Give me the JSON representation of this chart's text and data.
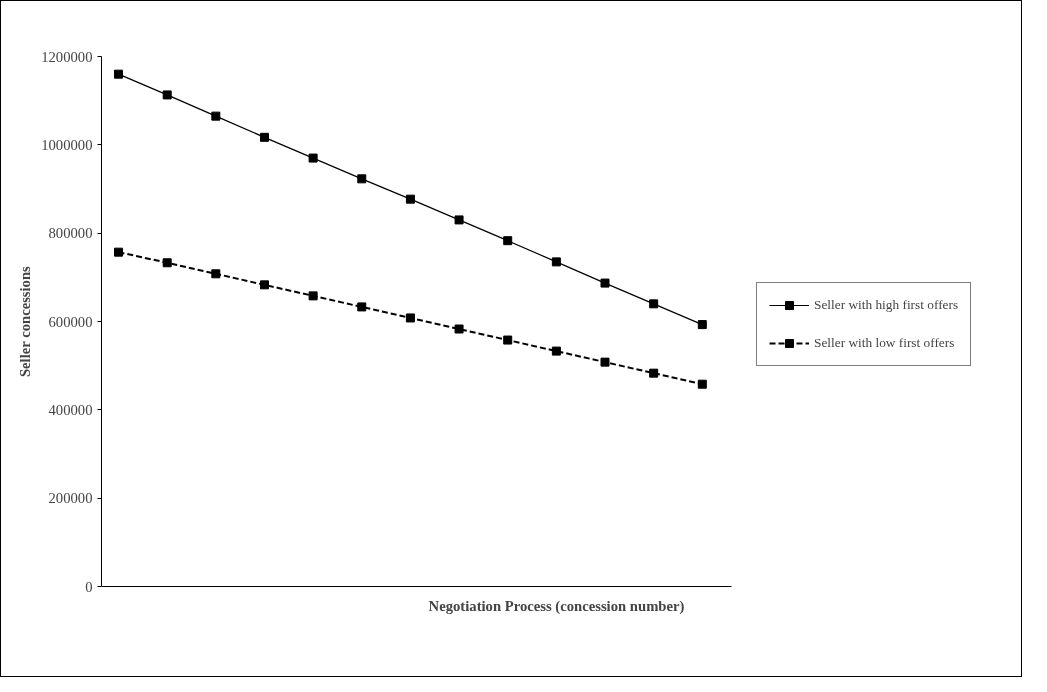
{
  "chart_data": {
    "type": "line",
    "xlabel": "Negotiation Process (concession number)",
    "ylabel": "Seller concessions",
    "categories": [
      null,
      null,
      null,
      null,
      null,
      null,
      null,
      null,
      null,
      null,
      null,
      null,
      null
    ],
    "series": [
      {
        "name": "Seller with high first offers",
        "color": "#000000",
        "line_style": "solid",
        "values": [
          1160000,
          1113000,
          1065000,
          1017000,
          970000,
          923000,
          877000,
          830000,
          783000,
          735000,
          687000,
          640000,
          593000
        ]
      },
      {
        "name": "Seller with low first offers",
        "color": "#000000",
        "line_style": "dashed",
        "values": [
          757000,
          733000,
          708000,
          683000,
          658000,
          633000,
          608000,
          583000,
          558000,
          533000,
          508000,
          483000,
          458000
        ]
      }
    ],
    "ylim": [
      0,
      1200000
    ],
    "yticks": [
      0,
      200000,
      400000,
      600000,
      800000,
      1000000,
      1200000
    ],
    "marker": "square",
    "grid": false,
    "legend": "right",
    "tick_labels": "y"
  }
}
